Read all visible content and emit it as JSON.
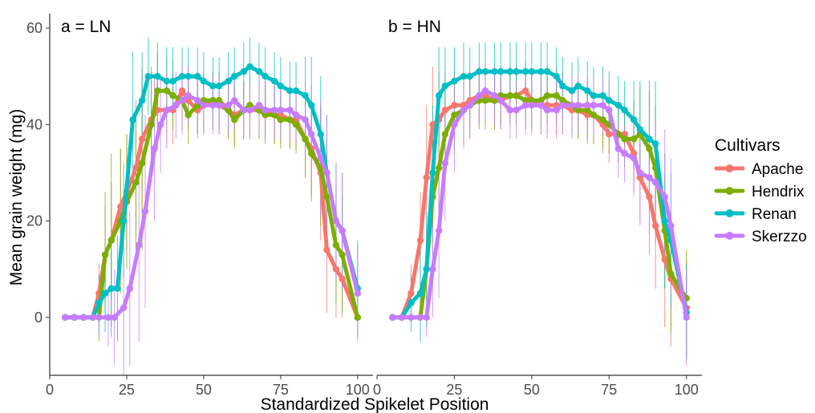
{
  "chart_data": {
    "type": "line",
    "xlabel": "Standardized Spikelet Position",
    "ylabel": "Mean grain weight (mg)",
    "xlim": [
      0,
      105
    ],
    "ylim": [
      -12,
      63
    ],
    "x_ticks": [
      0,
      25,
      50,
      75,
      100
    ],
    "y_ticks": [
      0,
      20,
      40,
      60
    ],
    "grid": false,
    "legend": {
      "title": "Cultivars",
      "placement": "right",
      "entries": [
        {
          "name": "Apache",
          "color": "#F8766D"
        },
        {
          "name": "Hendrix",
          "color": "#7CAE00"
        },
        {
          "name": "Renan",
          "color": "#00BFC4"
        },
        {
          "name": "Skerzzo",
          "color": "#C77CFF"
        }
      ]
    },
    "panels": [
      {
        "label": "a = LN",
        "series": [
          {
            "name": "Apache",
            "x": [
              5,
              8,
              11,
              14,
              16,
              18,
              20,
              23,
              25,
              28,
              30,
              33,
              35,
              38,
              40,
              43,
              45,
              48,
              50,
              53,
              55,
              58,
              60,
              63,
              65,
              68,
              70,
              73,
              75,
              78,
              80,
              83,
              85,
              88,
              90,
              93,
              95,
              100
            ],
            "y": [
              0,
              0,
              0,
              0,
              5,
              13,
              16,
              23,
              26,
              31,
              37,
              41,
              43,
              43,
              43,
              47,
              45,
              43,
              44,
              45,
              44,
              43,
              42,
              43,
              43,
              43,
              43,
              42,
              42,
              41,
              41,
              37,
              35,
              30,
              14,
              10,
              8,
              0
            ],
            "err": [
              0,
              0,
              0,
              0,
              6,
              10,
              12,
              12,
              12,
              14,
              15,
              10,
              8,
              7,
              7,
              6,
              6,
              6,
              6,
              6,
              6,
              6,
              6,
              6,
              6,
              6,
              6,
              6,
              6,
              6,
              6,
              8,
              10,
              14,
              13,
              10,
              8,
              0
            ]
          },
          {
            "name": "Hendrix",
            "x": [
              5,
              8,
              11,
              14,
              16,
              18,
              20,
              23,
              25,
              28,
              30,
              33,
              35,
              38,
              40,
              43,
              45,
              48,
              50,
              53,
              55,
              58,
              60,
              63,
              65,
              68,
              70,
              73,
              75,
              78,
              80,
              83,
              85,
              88,
              90,
              93,
              95,
              100
            ],
            "y": [
              0,
              0,
              0,
              0,
              0,
              13,
              16,
              20,
              24,
              28,
              32,
              40,
              47,
              47,
              46,
              45,
              42,
              44,
              45,
              45,
              45,
              43,
              41,
              43,
              44,
              43,
              42,
              42,
              41,
              41,
              40,
              37,
              34,
              31,
              25,
              15,
              13,
              0
            ],
            "err": [
              0,
              0,
              0,
              0,
              5,
              13,
              18,
              15,
              14,
              14,
              18,
              12,
              8,
              7,
              7,
              6,
              6,
              6,
              6,
              6,
              6,
              6,
              6,
              6,
              6,
              6,
              6,
              6,
              6,
              6,
              6,
              8,
              10,
              12,
              12,
              12,
              12,
              0
            ]
          },
          {
            "name": "Renan",
            "x": [
              5,
              8,
              11,
              14,
              16,
              18,
              20,
              22,
              24,
              27,
              30,
              32,
              35,
              38,
              40,
              43,
              45,
              48,
              50,
              53,
              55,
              58,
              60,
              63,
              65,
              68,
              70,
              73,
              75,
              78,
              80,
              83,
              85,
              88,
              90,
              93,
              95,
              100
            ],
            "y": [
              0,
              0,
              0,
              0,
              3,
              5,
              6,
              6,
              20,
              41,
              45,
              50,
              50,
              49,
              49,
              50,
              50,
              50,
              49,
              48,
              48,
              49,
              50,
              51,
              52,
              51,
              50,
              49,
              48,
              47,
              47,
              46,
              44,
              38,
              30,
              20,
              18,
              6
            ],
            "err": [
              0,
              0,
              0,
              0,
              6,
              8,
              10,
              11,
              12,
              14,
              10,
              8,
              7,
              7,
              7,
              6,
              6,
              6,
              6,
              6,
              6,
              6,
              6,
              6,
              6,
              6,
              6,
              6,
              6,
              6,
              6,
              8,
              10,
              12,
              12,
              12,
              12,
              10
            ]
          },
          {
            "name": "Skerzzo",
            "x": [
              5,
              8,
              11,
              14,
              16,
              19,
              21,
              24,
              26,
              29,
              31,
              34,
              36,
              38,
              41,
              43,
              45,
              48,
              50,
              53,
              55,
              58,
              60,
              63,
              65,
              68,
              70,
              73,
              75,
              78,
              80,
              83,
              85,
              88,
              90,
              93,
              95,
              100
            ],
            "y": [
              0,
              0,
              0,
              0,
              0,
              0,
              0,
              2,
              6,
              15,
              22,
              35,
              40,
              43,
              44,
              45,
              46,
              45,
              44,
              44,
              44,
              44,
              45,
              43,
              43,
              44,
              43,
              43,
              43,
              43,
              42,
              41,
              38,
              33,
              30,
              20,
              18,
              5
            ],
            "err": [
              0,
              0,
              0,
              0,
              4,
              6,
              10,
              14,
              16,
              20,
              20,
              15,
              10,
              8,
              7,
              7,
              6,
              6,
              6,
              6,
              6,
              6,
              6,
              6,
              6,
              6,
              6,
              6,
              6,
              6,
              6,
              8,
              10,
              12,
              12,
              12,
              12,
              10
            ]
          }
        ]
      },
      {
        "label": "b = HN",
        "series": [
          {
            "name": "Apache",
            "x": [
              5,
              8,
              11,
              14,
              16,
              18,
              20,
              22,
              25,
              28,
              30,
              33,
              35,
              38,
              40,
              43,
              45,
              48,
              50,
              53,
              55,
              58,
              60,
              63,
              65,
              68,
              70,
              73,
              75,
              78,
              80,
              83,
              85,
              88,
              90,
              93,
              95,
              100
            ],
            "y": [
              0,
              0,
              5,
              16,
              29,
              40,
              41,
              43,
              44,
              44,
              45,
              46,
              46,
              45,
              45,
              46,
              46,
              47,
              45,
              44,
              44,
              44,
              44,
              43,
              43,
              42,
              42,
              40,
              38,
              38,
              38,
              34,
              29,
              25,
              19,
              12,
              8,
              2
            ],
            "err": [
              0,
              0,
              6,
              10,
              15,
              12,
              10,
              8,
              7,
              7,
              6,
              6,
              6,
              6,
              6,
              6,
              6,
              6,
              6,
              6,
              6,
              6,
              6,
              6,
              6,
              6,
              6,
              6,
              6,
              6,
              6,
              8,
              10,
              12,
              13,
              14,
              14,
              10
            ]
          },
          {
            "name": "Hendrix",
            "x": [
              5,
              8,
              11,
              14,
              16,
              18,
              20,
              22,
              25,
              28,
              30,
              33,
              35,
              38,
              40,
              43,
              45,
              48,
              50,
              53,
              55,
              58,
              60,
              63,
              65,
              68,
              70,
              73,
              75,
              78,
              80,
              83,
              85,
              88,
              90,
              93,
              95,
              100
            ],
            "y": [
              0,
              0,
              0,
              0,
              10,
              25,
              31,
              38,
              42,
              43,
              44,
              45,
              45,
              45,
              46,
              46,
              46,
              45,
              45,
              45,
              46,
              46,
              45,
              44,
              43,
              43,
              42,
              41,
              40,
              38,
              37,
              37,
              38,
              35,
              31,
              18,
              9,
              4
            ],
            "err": [
              0,
              0,
              0,
              0,
              6,
              12,
              14,
              10,
              8,
              7,
              7,
              6,
              6,
              6,
              6,
              6,
              6,
              6,
              6,
              6,
              6,
              6,
              6,
              6,
              6,
              6,
              6,
              6,
              6,
              6,
              6,
              8,
              10,
              12,
              13,
              12,
              12,
              10
            ]
          },
          {
            "name": "Renan",
            "x": [
              5,
              8,
              11,
              14,
              16,
              18,
              20,
              22,
              25,
              28,
              30,
              33,
              35,
              38,
              40,
              43,
              45,
              48,
              50,
              53,
              55,
              58,
              60,
              63,
              65,
              68,
              70,
              73,
              75,
              78,
              80,
              83,
              85,
              88,
              90,
              93,
              95,
              100
            ],
            "y": [
              0,
              0,
              3,
              5,
              10,
              30,
              46,
              48,
              49,
              50,
              50,
              51,
              51,
              51,
              51,
              51,
              51,
              51,
              51,
              51,
              51,
              50,
              48,
              47,
              48,
              47,
              46,
              46,
              45,
              44,
              43,
              41,
              39,
              37,
              36,
              20,
              16,
              1
            ],
            "err": [
              0,
              0,
              6,
              10,
              12,
              14,
              10,
              8,
              7,
              7,
              6,
              6,
              6,
              6,
              6,
              6,
              6,
              6,
              6,
              6,
              6,
              6,
              6,
              6,
              6,
              6,
              6,
              6,
              6,
              6,
              6,
              8,
              10,
              12,
              13,
              14,
              14,
              10
            ]
          },
          {
            "name": "Skerzzo",
            "x": [
              5,
              8,
              11,
              14,
              16,
              18,
              20,
              22,
              25,
              28,
              30,
              33,
              35,
              38,
              40,
              43,
              45,
              48,
              50,
              53,
              55,
              58,
              60,
              63,
              65,
              68,
              70,
              73,
              75,
              78,
              80,
              83,
              85,
              88,
              90,
              93,
              95,
              100
            ],
            "y": [
              0,
              0,
              0,
              0,
              0,
              10,
              18,
              32,
              40,
              43,
              44,
              46,
              47,
              46,
              45,
              43,
              43,
              44,
              44,
              44,
              43,
              43,
              44,
              44,
              44,
              44,
              44,
              44,
              43,
              35,
              34,
              33,
              30,
              29,
              28,
              25,
              19,
              0
            ],
            "err": [
              0,
              0,
              0,
              0,
              4,
              10,
              14,
              12,
              10,
              8,
              7,
              6,
              6,
              6,
              6,
              6,
              6,
              6,
              6,
              6,
              6,
              6,
              6,
              6,
              6,
              6,
              6,
              6,
              6,
              6,
              6,
              8,
              10,
              12,
              13,
              14,
              14,
              10
            ]
          }
        ]
      }
    ]
  }
}
